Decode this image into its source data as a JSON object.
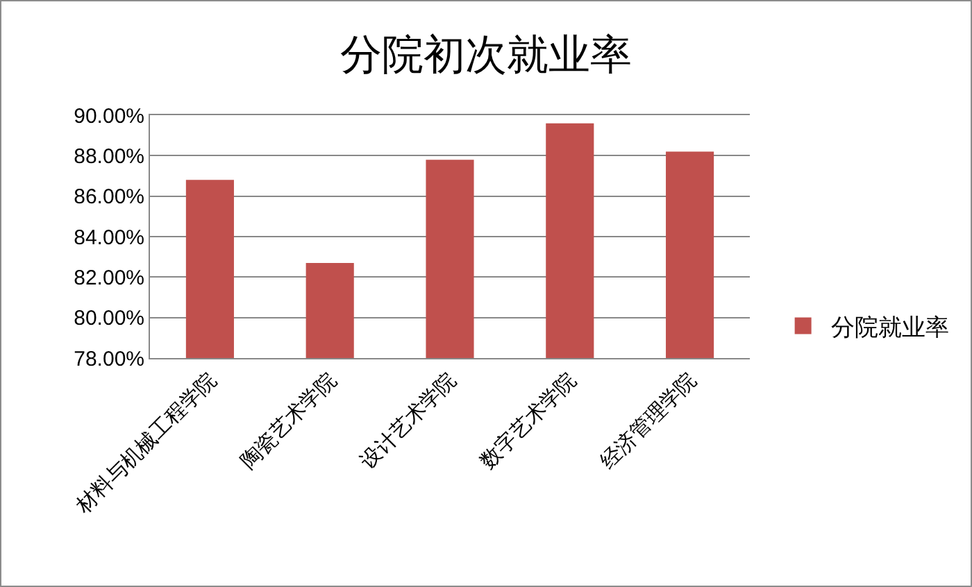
{
  "chart_data": {
    "type": "bar",
    "title": "分院初次就业率",
    "categories": [
      "材料与机械工程学院",
      "陶瓷艺术学院",
      "设计艺术学院",
      "数字艺术学院",
      "经济管理学院"
    ],
    "series": [
      {
        "name": "分院就业率",
        "color": "#c0504d",
        "values": [
          86.8,
          82.7,
          87.8,
          89.6,
          88.2
        ]
      }
    ],
    "ylim": [
      78,
      90
    ],
    "yticks": [
      {
        "value": 78,
        "label": "78.00%"
      },
      {
        "value": 80,
        "label": "80.00%"
      },
      {
        "value": 82,
        "label": "82.00%"
      },
      {
        "value": 84,
        "label": "84.00%"
      },
      {
        "value": 86,
        "label": "86.00%"
      },
      {
        "value": 88,
        "label": "88.00%"
      },
      {
        "value": 90,
        "label": "90.00%"
      }
    ],
    "grid": "y",
    "legend": "right"
  }
}
